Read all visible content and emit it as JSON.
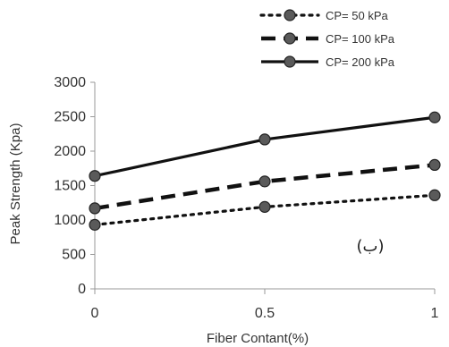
{
  "chart_data": {
    "type": "line",
    "x": [
      0,
      0.5,
      1
    ],
    "x_tick_labels": [
      "0",
      "0.5",
      "1"
    ],
    "xlabel": "Fiber Contant(%)",
    "ylabel": "Peak Strength (Kpa)",
    "ylim": [
      0,
      3000
    ],
    "y_ticks": [
      0,
      500,
      1000,
      1500,
      2000,
      2500,
      3000
    ],
    "grid": false,
    "legend_position": "top-right",
    "annotation": "(ب)",
    "series": [
      {
        "name": "CP= 50 kPa",
        "values": [
          930,
          1190,
          1360
        ],
        "line_style": "dotted",
        "color": "#111111",
        "marker_color": "#5a5a5a"
      },
      {
        "name": "CP= 100 kPa",
        "values": [
          1170,
          1560,
          1800
        ],
        "line_style": "dashed",
        "color": "#111111",
        "marker_color": "#5a5a5a"
      },
      {
        "name": "CP= 200 kPa",
        "values": [
          1640,
          2170,
          2490
        ],
        "line_style": "solid",
        "color": "#111111",
        "marker_color": "#5a5a5a"
      }
    ]
  }
}
